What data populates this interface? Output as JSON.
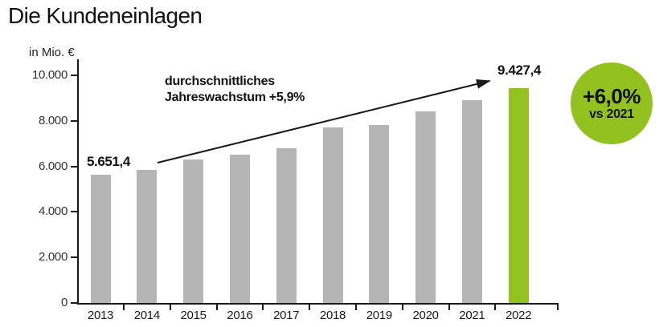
{
  "header": {
    "title": "Die Kundeneinlagen"
  },
  "chart_data": {
    "type": "bar",
    "title": "Die Kundeneinlagen",
    "unit_label": "in Mio. €",
    "categories": [
      "2013",
      "2014",
      "2015",
      "2016",
      "2017",
      "2018",
      "2019",
      "2020",
      "2021",
      "2022"
    ],
    "values": [
      5651.4,
      5850,
      6300,
      6500,
      6800,
      7700,
      7800,
      8400,
      8900,
      9427.4
    ],
    "ylim": [
      0,
      10000
    ],
    "y_ticks": [
      {
        "label": "10.000",
        "value": 10000
      },
      {
        "label": "8.000",
        "value": 8000
      },
      {
        "label": "6.000",
        "value": 6000
      },
      {
        "label": "4.000",
        "value": 4000
      },
      {
        "label": "2.000",
        "value": 2000
      },
      {
        "label": "0",
        "value": 0
      }
    ],
    "grid": false,
    "legend_position": "none",
    "bar_color": "#b5b5b5",
    "highlight": {
      "index": 9,
      "color": "#93c11f"
    },
    "value_labels": {
      "first": "5.651,4",
      "last": "9.427,4"
    },
    "annotation": {
      "line1": "durchschnittliches",
      "line2": "Jahreswachstum +5,9%"
    }
  },
  "badge": {
    "value": "+6,0%",
    "caption": "vs 2021",
    "bg_color": "#93c11f"
  },
  "colors": {
    "text": "#1a1a1a",
    "axis": "#1a1a1a"
  }
}
